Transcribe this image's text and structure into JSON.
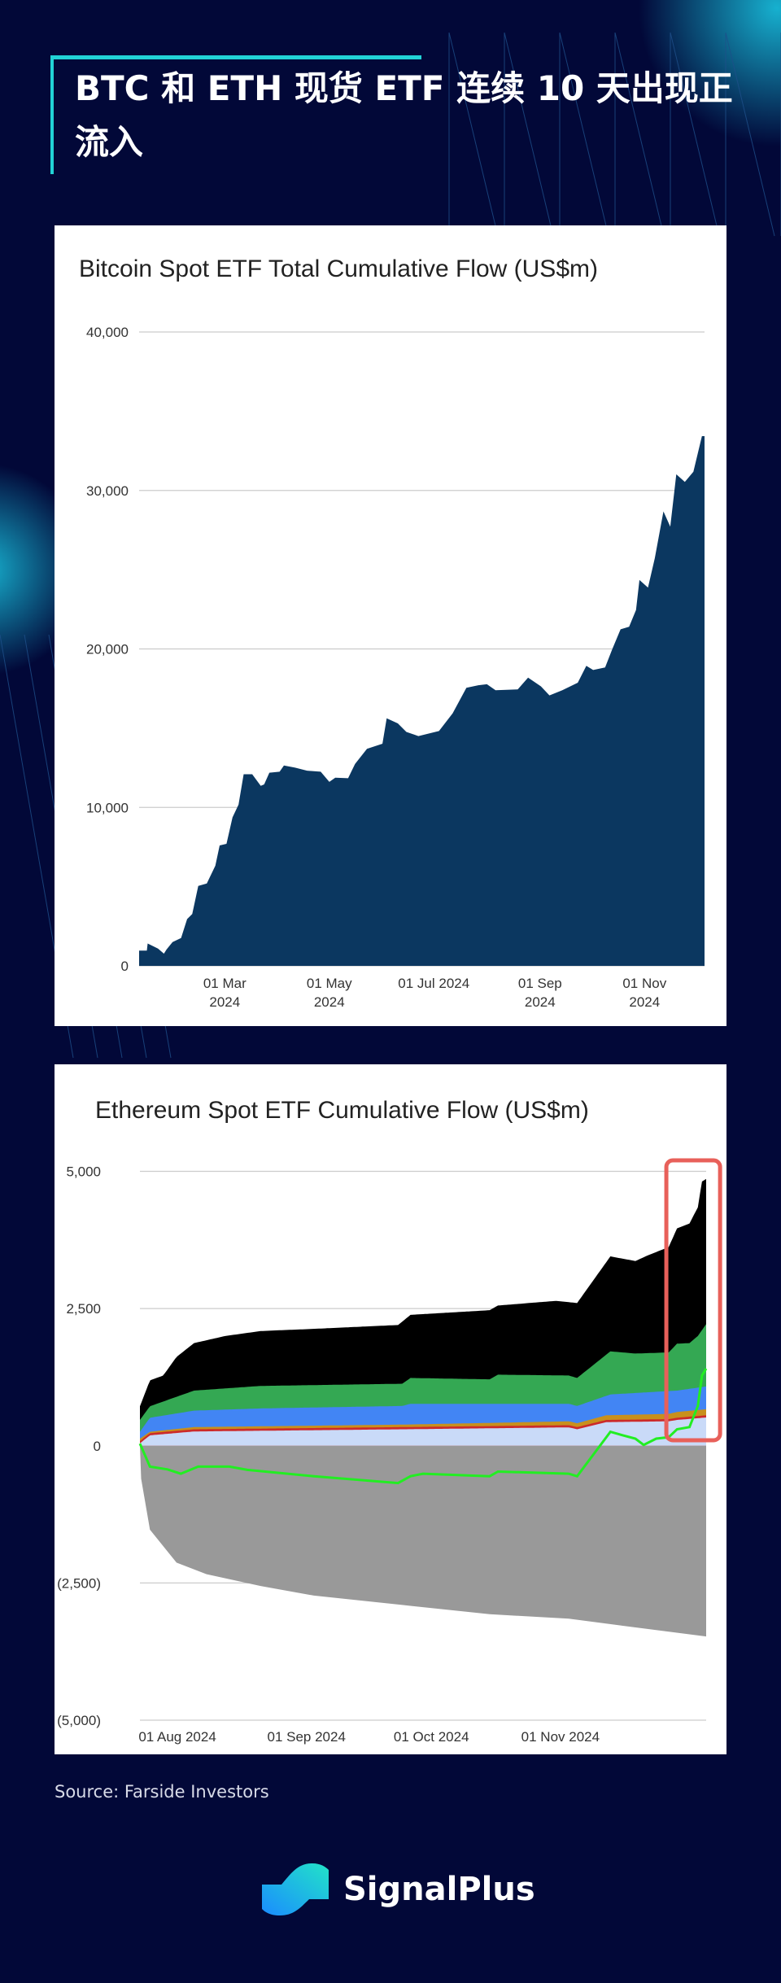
{
  "header": {
    "title": "BTC 和 ETH 现货 ETF 连续 10 天出现正流入"
  },
  "colors": {
    "background": "#020838",
    "accent": "#22d3d6",
    "btc_fill": "#0b3760",
    "highlight": "#e8605a"
  },
  "chart_data": [
    {
      "type": "area",
      "title": "Bitcoin Spot ETF Total Cumulative Flow (US$m)",
      "x_start_date": "2024-01-11",
      "x_unit": "days since start",
      "ylim": [
        0,
        40000
      ],
      "yticks": [
        0,
        10000,
        20000,
        30000,
        40000
      ],
      "ytick_labels": [
        "0",
        "10,000",
        "20,000",
        "30,000",
        "40,000"
      ],
      "xticks_days": [
        50,
        111,
        172,
        234,
        295
      ],
      "xtick_labels": [
        [
          "01 Mar",
          "2024"
        ],
        [
          "01 May",
          "2024"
        ],
        [
          "01 Jul 2024",
          ""
        ],
        [
          "01 Sep",
          "2024"
        ],
        [
          "01 Nov",
          "2024"
        ]
      ],
      "xlim": [
        0,
        330
      ],
      "grid": true,
      "series": [
        {
          "name": "Total Cumulative Flow",
          "color": "#0b3760",
          "points": [
            [
              0,
              960
            ],
            [
              4.5,
              960
            ],
            [
              5,
              1410
            ],
            [
              11,
              1090
            ],
            [
              14.5,
              770
            ],
            [
              16,
              1030
            ],
            [
              19.5,
              1500
            ],
            [
              24.5,
              1760
            ],
            [
              28,
              2950
            ],
            [
              31,
              3270
            ],
            [
              34.5,
              5040
            ],
            [
              39.5,
              5200
            ],
            [
              44.5,
              6320
            ],
            [
              47,
              7600
            ],
            [
              51,
              7700
            ],
            [
              54.5,
              9370
            ],
            [
              58,
              10170
            ],
            [
              61,
              12090
            ],
            [
              66,
              12090
            ],
            [
              71,
              11360
            ],
            [
              73,
              11450
            ],
            [
              76,
              12190
            ],
            [
              82,
              12250
            ],
            [
              84.5,
              12640
            ],
            [
              91,
              12510
            ],
            [
              98,
              12320
            ],
            [
              106,
              12250
            ],
            [
              111,
              11610
            ],
            [
              114.5,
              11870
            ],
            [
              122,
              11840
            ],
            [
              126,
              12740
            ],
            [
              133,
              13700
            ],
            [
              142,
              14020
            ],
            [
              144.5,
              15620
            ],
            [
              151,
              15300
            ],
            [
              156,
              14760
            ],
            [
              163,
              14500
            ],
            [
              175,
              14820
            ],
            [
              183,
              15940
            ],
            [
              191,
              17550
            ],
            [
              198,
              17710
            ],
            [
              203,
              17770
            ],
            [
              208,
              17390
            ],
            [
              221,
              17450
            ],
            [
              227,
              18190
            ],
            [
              234.5,
              17640
            ],
            [
              239.5,
              17070
            ],
            [
              247,
              17390
            ],
            [
              256,
              17870
            ],
            [
              261,
              18930
            ],
            [
              265,
              18670
            ],
            [
              272,
              18830
            ],
            [
              276,
              19950
            ],
            [
              281,
              21240
            ],
            [
              286,
              21400
            ],
            [
              290,
              22460
            ],
            [
              292,
              24350
            ],
            [
              297,
              23870
            ],
            [
              301,
              25730
            ],
            [
              306,
              28680
            ],
            [
              310,
              27720
            ],
            [
              313.5,
              31020
            ],
            [
              318.5,
              30540
            ],
            [
              323.5,
              31180
            ],
            [
              328.5,
              33430
            ],
            [
              330,
              33430
            ]
          ]
        }
      ]
    },
    {
      "type": "area",
      "title": "Ethereum Spot ETF Cumulative Flow (US$m)",
      "x_start_date": "2024-07-23",
      "x_unit": "days since start",
      "ylim": [
        -5000,
        5000
      ],
      "yticks": [
        -5000,
        -2500,
        0,
        2500,
        5000
      ],
      "ytick_labels": [
        "(5,000)",
        "(2,500)",
        "0",
        "2,500",
        "5,000"
      ],
      "xticks_days": [
        9,
        40,
        70,
        101
      ],
      "xtick_labels": [
        "01 Aug 2024",
        "01 Sep 2024",
        "01 Oct 2024",
        "01 Nov 2024"
      ],
      "xlim": [
        0,
        136
      ],
      "grid": true,
      "highlight_days": [
        128,
        137
      ],
      "stack_tops": [
        {
          "name": "light-blue",
          "color": "#c9daf8",
          "points": [
            [
              0,
              45
            ],
            [
              2.4,
              190
            ],
            [
              13,
              260
            ],
            [
              63,
              300
            ],
            [
              103,
              335
            ],
            [
              105,
              300
            ],
            [
              112,
              430
            ],
            [
              127,
              445
            ],
            [
              129,
              470
            ],
            [
              136,
              515
            ]
          ]
        },
        {
          "name": "red",
          "color": "#cc2a2a",
          "points": [
            [
              0,
              85
            ],
            [
              2.4,
              230
            ],
            [
              13,
              300
            ],
            [
              63,
              340
            ],
            [
              103,
              375
            ],
            [
              105,
              340
            ],
            [
              112,
              470
            ],
            [
              127,
              485
            ],
            [
              129,
              510
            ],
            [
              136,
              555
            ]
          ]
        },
        {
          "name": "orange",
          "color": "#c8901c",
          "points": [
            [
              0,
              130
            ],
            [
              2.4,
              255
            ],
            [
              13,
              340
            ],
            [
              63,
              385
            ],
            [
              103,
              445
            ],
            [
              105,
              410
            ],
            [
              112,
              555
            ],
            [
              127,
              580
            ],
            [
              129,
              615
            ],
            [
              136,
              665
            ]
          ]
        },
        {
          "name": "blue",
          "color": "#4285f4",
          "points": [
            [
              0,
              255
            ],
            [
              2.4,
              510
            ],
            [
              13,
              640
            ],
            [
              29,
              680
            ],
            [
              63,
              725
            ],
            [
              65,
              765
            ],
            [
              103,
              765
            ],
            [
              105,
              725
            ],
            [
              113,
              935
            ],
            [
              129,
              1005
            ],
            [
              136,
              1080
            ]
          ]
        },
        {
          "name": "green",
          "color": "#34a853",
          "points": [
            [
              0,
              470
            ],
            [
              2.4,
              720
            ],
            [
              13,
              1005
            ],
            [
              29,
              1090
            ],
            [
              63,
              1130
            ],
            [
              65,
              1235
            ],
            [
              84,
              1210
            ],
            [
              86,
              1295
            ],
            [
              103,
              1280
            ],
            [
              105,
              1235
            ],
            [
              113,
              1720
            ],
            [
              119,
              1680
            ],
            [
              127,
              1700
            ],
            [
              129,
              1860
            ],
            [
              132,
              1870
            ],
            [
              134,
              2000
            ],
            [
              136,
              2215
            ]
          ]
        },
        {
          "name": "black",
          "color": "#000000",
          "points": [
            [
              0,
              720
            ],
            [
              2.4,
              1190
            ],
            [
              5.6,
              1280
            ],
            [
              8.8,
              1620
            ],
            [
              13,
              1870
            ],
            [
              20.5,
              2000
            ],
            [
              29,
              2090
            ],
            [
              41.8,
              2130
            ],
            [
              62,
              2200
            ],
            [
              65,
              2385
            ],
            [
              84,
              2470
            ],
            [
              86,
              2555
            ],
            [
              100,
              2640
            ],
            [
              105,
              2600
            ],
            [
              113,
              3450
            ],
            [
              119,
              3365
            ],
            [
              122,
              3470
            ],
            [
              127,
              3620
            ],
            [
              129,
              3960
            ],
            [
              132,
              4050
            ],
            [
              134,
              4345
            ],
            [
              135,
              4815
            ],
            [
              136,
              4860
            ]
          ]
        }
      ],
      "negative_area": {
        "name": "gray",
        "color": "#999999",
        "points": [
          [
            0,
            0
          ],
          [
            0.3,
            -600
          ],
          [
            2.4,
            -1530
          ],
          [
            8.8,
            -2130
          ],
          [
            16,
            -2340
          ],
          [
            29,
            -2555
          ],
          [
            41.8,
            -2730
          ],
          [
            63,
            -2900
          ],
          [
            84,
            -3070
          ],
          [
            103,
            -3150
          ],
          [
            116,
            -3280
          ],
          [
            136,
            -3475
          ]
        ]
      },
      "net_line": {
        "name": "total-net",
        "color": "#22ee22",
        "points": [
          [
            0,
            40
          ],
          [
            2.4,
            -380
          ],
          [
            6.6,
            -430
          ],
          [
            9.8,
            -510
          ],
          [
            14,
            -380
          ],
          [
            21.5,
            -380
          ],
          [
            25.8,
            -440
          ],
          [
            41.8,
            -555
          ],
          [
            62,
            -680
          ],
          [
            65,
            -555
          ],
          [
            68,
            -510
          ],
          [
            84,
            -555
          ],
          [
            86,
            -470
          ],
          [
            103,
            -510
          ],
          [
            105,
            -555
          ],
          [
            113,
            255
          ],
          [
            116,
            190
          ],
          [
            119,
            130
          ],
          [
            121,
            15
          ],
          [
            124,
            130
          ],
          [
            127,
            155
          ],
          [
            129,
            300
          ],
          [
            132,
            340
          ],
          [
            134,
            725
          ],
          [
            135,
            1280
          ],
          [
            136,
            1405
          ]
        ]
      }
    }
  ],
  "footer": {
    "source": "Source: Farside Investors",
    "brand": "SignalPlus"
  }
}
